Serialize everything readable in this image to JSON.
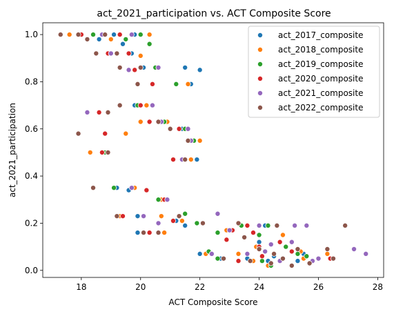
{
  "chart_data": {
    "type": "scatter",
    "title": "act_2021_participation vs. ACT Composite Score",
    "xlabel": "ACT Composite Score",
    "ylabel": "act_2021_participation",
    "xlim": [
      16.7,
      28.2
    ],
    "ylim": [
      -0.03,
      1.05
    ],
    "xticks": [
      18,
      20,
      22,
      24,
      26,
      28
    ],
    "yticks": [
      0.0,
      0.2,
      0.4,
      0.6,
      0.8,
      1.0
    ],
    "grid": false,
    "legend_position": "top-right",
    "series": [
      {
        "name": "act_2017_composite",
        "color": "#1f77b4",
        "points": [
          [
            19.1,
            1.0
          ],
          [
            19.8,
            1.0
          ],
          [
            18.6,
            0.98
          ],
          [
            19.4,
            0.96
          ],
          [
            19.7,
            0.92
          ],
          [
            20.1,
            0.86
          ],
          [
            21.5,
            0.86
          ],
          [
            22.0,
            0.85
          ],
          [
            21.7,
            0.79
          ],
          [
            19.8,
            0.7
          ],
          [
            20.3,
            0.63
          ],
          [
            21.4,
            0.6
          ],
          [
            21.8,
            0.55
          ],
          [
            21.9,
            0.47
          ],
          [
            19.5,
            0.58
          ],
          [
            18.8,
            0.5
          ],
          [
            19.2,
            0.35
          ],
          [
            19.6,
            0.34
          ],
          [
            20.7,
            0.3
          ],
          [
            19.9,
            0.23
          ],
          [
            19.9,
            0.16
          ],
          [
            21.5,
            0.19
          ],
          [
            21.2,
            0.21
          ],
          [
            22.0,
            0.07
          ],
          [
            23.6,
            0.05
          ],
          [
            24.2,
            0.19
          ],
          [
            24.0,
            0.12
          ],
          [
            24.3,
            0.04
          ],
          [
            25.5,
            0.07
          ],
          [
            25.3,
            0.04
          ],
          [
            22.7,
            0.05
          ],
          [
            24.5,
            0.06
          ]
        ]
      },
      {
        "name": "act_2018_composite",
        "color": "#ff7f0e",
        "points": [
          [
            17.6,
            1.0
          ],
          [
            18.4,
            1.0
          ],
          [
            19.0,
            0.98
          ],
          [
            20.3,
            1.0
          ],
          [
            19.6,
            0.92
          ],
          [
            20.0,
            0.91
          ],
          [
            20.5,
            0.86
          ],
          [
            21.6,
            0.79
          ],
          [
            20.0,
            0.63
          ],
          [
            20.2,
            0.7
          ],
          [
            20.9,
            0.63
          ],
          [
            19.5,
            0.58
          ],
          [
            22.0,
            0.55
          ],
          [
            21.7,
            0.47
          ],
          [
            18.3,
            0.5
          ],
          [
            19.8,
            0.35
          ],
          [
            20.7,
            0.3
          ],
          [
            19.3,
            0.23
          ],
          [
            20.7,
            0.23
          ],
          [
            20.8,
            0.16
          ],
          [
            21.4,
            0.21
          ],
          [
            22.2,
            0.07
          ],
          [
            22.9,
            0.17
          ],
          [
            23.3,
            0.07
          ],
          [
            23.9,
            0.1
          ],
          [
            24.3,
            0.02
          ],
          [
            24.8,
            0.15
          ],
          [
            25.5,
            0.05
          ],
          [
            26.3,
            0.07
          ],
          [
            25.4,
            0.08
          ],
          [
            23.8,
            0.04
          ]
        ]
      },
      {
        "name": "act_2019_composite",
        "color": "#2ca02c",
        "points": [
          [
            18.4,
            1.0
          ],
          [
            19.5,
            0.98
          ],
          [
            20.0,
            1.0
          ],
          [
            19.2,
            0.92
          ],
          [
            20.3,
            0.96
          ],
          [
            20.5,
            0.86
          ],
          [
            21.2,
            0.79
          ],
          [
            19.9,
            0.7
          ],
          [
            18.9,
            0.67
          ],
          [
            20.8,
            0.63
          ],
          [
            21.5,
            0.6
          ],
          [
            21.8,
            0.55
          ],
          [
            21.5,
            0.47
          ],
          [
            18.8,
            0.5
          ],
          [
            19.1,
            0.35
          ],
          [
            20.6,
            0.3
          ],
          [
            20.1,
            0.23
          ],
          [
            21.5,
            0.24
          ],
          [
            21.9,
            0.2
          ],
          [
            22.3,
            0.08
          ],
          [
            22.6,
            0.05
          ],
          [
            23.4,
            0.19
          ],
          [
            24.3,
            0.19
          ],
          [
            24.1,
            0.04
          ],
          [
            25.3,
            0.07
          ],
          [
            25.6,
            0.06
          ],
          [
            24.0,
            0.15
          ],
          [
            22.6,
            0.16
          ],
          [
            24.9,
            0.1
          ],
          [
            24.4,
            0.02
          ]
        ]
      },
      {
        "name": "act_2020_composite",
        "color": "#d62728",
        "points": [
          [
            18.0,
            1.0
          ],
          [
            19.3,
            1.0
          ],
          [
            19.6,
            0.92
          ],
          [
            18.9,
            0.92
          ],
          [
            19.8,
            0.85
          ],
          [
            20.4,
            0.79
          ],
          [
            20.0,
            0.7
          ],
          [
            18.6,
            0.67
          ],
          [
            20.3,
            0.63
          ],
          [
            21.3,
            0.6
          ],
          [
            18.8,
            0.58
          ],
          [
            21.1,
            0.47
          ],
          [
            18.7,
            0.5
          ],
          [
            20.2,
            0.34
          ],
          [
            20.8,
            0.3
          ],
          [
            19.4,
            0.23
          ],
          [
            20.3,
            0.16
          ],
          [
            21.1,
            0.21
          ],
          [
            22.4,
            0.07
          ],
          [
            22.9,
            0.13
          ],
          [
            23.6,
            0.19
          ],
          [
            23.1,
            0.17
          ],
          [
            24.0,
            0.1
          ],
          [
            24.6,
            0.19
          ],
          [
            24.1,
            0.06
          ],
          [
            24.7,
            0.12
          ],
          [
            23.3,
            0.04
          ],
          [
            25.1,
            0.08
          ],
          [
            23.8,
            0.16
          ],
          [
            26.4,
            0.05
          ]
        ]
      },
      {
        "name": "act_2021_composite",
        "color": "#9467bd",
        "points": [
          [
            18.7,
            1.0
          ],
          [
            19.7,
            1.0
          ],
          [
            19.0,
            0.92
          ],
          [
            19.6,
            0.85
          ],
          [
            20.6,
            0.86
          ],
          [
            20.4,
            0.7
          ],
          [
            18.2,
            0.67
          ],
          [
            20.7,
            0.63
          ],
          [
            21.6,
            0.6
          ],
          [
            21.7,
            0.55
          ],
          [
            21.4,
            0.47
          ],
          [
            18.9,
            0.5
          ],
          [
            19.7,
            0.35
          ],
          [
            20.9,
            0.3
          ],
          [
            20.1,
            0.23
          ],
          [
            20.6,
            0.2
          ],
          [
            22.6,
            0.24
          ],
          [
            22.4,
            0.07
          ],
          [
            23.0,
            0.17
          ],
          [
            23.6,
            0.07
          ],
          [
            24.0,
            0.19
          ],
          [
            24.4,
            0.11
          ],
          [
            24.7,
            0.04
          ],
          [
            25.2,
            0.19
          ],
          [
            25.6,
            0.19
          ],
          [
            26.0,
            0.05
          ],
          [
            27.2,
            0.09
          ],
          [
            27.6,
            0.07
          ],
          [
            25.8,
            0.04
          ],
          [
            25.1,
            0.12
          ],
          [
            24.2,
            0.08
          ]
        ]
      },
      {
        "name": "act_2022_composite",
        "color": "#8c564b",
        "points": [
          [
            17.3,
            1.0
          ],
          [
            17.9,
            1.0
          ],
          [
            18.2,
            0.98
          ],
          [
            18.8,
            1.0
          ],
          [
            19.2,
            0.92
          ],
          [
            18.5,
            0.92
          ],
          [
            19.3,
            0.86
          ],
          [
            19.9,
            0.79
          ],
          [
            20.0,
            0.86
          ],
          [
            19.3,
            0.7
          ],
          [
            18.9,
            0.67
          ],
          [
            20.6,
            0.63
          ],
          [
            21.0,
            0.6
          ],
          [
            17.9,
            0.58
          ],
          [
            21.6,
            0.55
          ],
          [
            21.5,
            0.47
          ],
          [
            18.9,
            0.5
          ],
          [
            18.4,
            0.35
          ],
          [
            19.2,
            0.23
          ],
          [
            20.1,
            0.16
          ],
          [
            20.6,
            0.16
          ],
          [
            21.3,
            0.23
          ],
          [
            22.1,
            0.2
          ],
          [
            22.8,
            0.05
          ],
          [
            23.3,
            0.2
          ],
          [
            23.5,
            0.14
          ],
          [
            24.0,
            0.09
          ],
          [
            24.5,
            0.07
          ],
          [
            24.8,
            0.05
          ],
          [
            25.3,
            0.09
          ],
          [
            25.7,
            0.03
          ],
          [
            26.3,
            0.09
          ],
          [
            26.5,
            0.05
          ],
          [
            26.9,
            0.19
          ],
          [
            24.6,
            0.19
          ],
          [
            23.7,
            0.04
          ],
          [
            24.4,
            0.03
          ],
          [
            25.1,
            0.02
          ]
        ]
      }
    ]
  }
}
